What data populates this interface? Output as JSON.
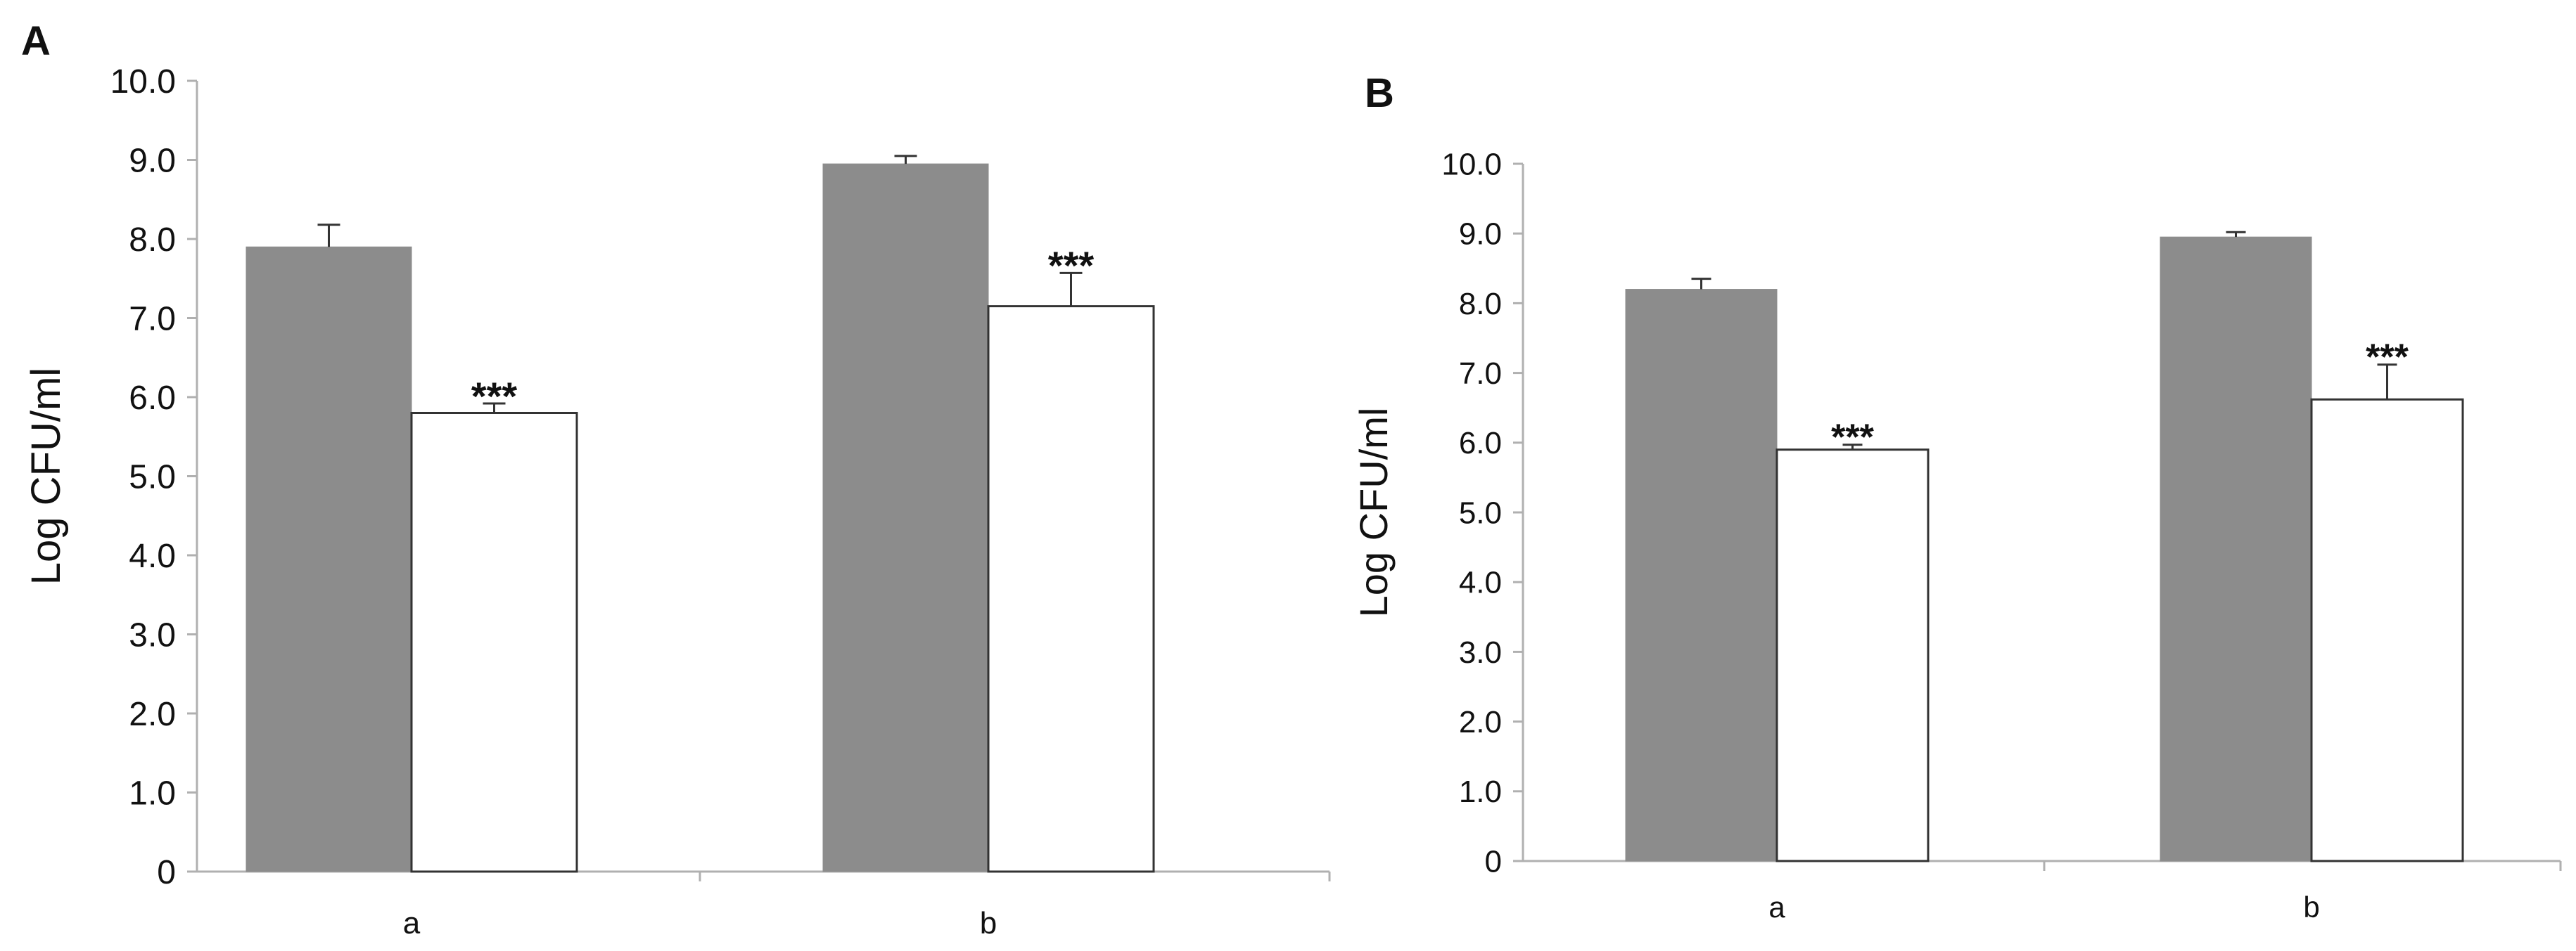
{
  "figure": {
    "colors": {
      "gray_bar": "#8c8c8c",
      "white_bar": "#ffffff",
      "axis": "#b0b0b0",
      "stroke": "#333333",
      "text": "#111111"
    }
  },
  "chart_data": [
    {
      "panel": "A",
      "type": "bar",
      "ylabel": "Log CFU/ml",
      "categories": [
        "a",
        "b"
      ],
      "ylim": [
        0,
        10
      ],
      "yticks": [
        "0",
        "1.0",
        "2.0",
        "3.0",
        "4.0",
        "5.0",
        "6.0",
        "7.0",
        "8.0",
        "9.0",
        "10.0"
      ],
      "grid": false,
      "legend": "none",
      "series": [
        {
          "fill": "gray",
          "values": [
            7.9,
            8.95
          ],
          "errors": [
            0.28,
            0.1
          ],
          "significance": [
            "",
            ""
          ]
        },
        {
          "fill": "white",
          "values": [
            5.8,
            7.15
          ],
          "errors": [
            0.12,
            0.42
          ],
          "significance": [
            "***",
            "***"
          ]
        }
      ]
    },
    {
      "panel": "B",
      "type": "bar",
      "ylabel": "Log CFU/ml",
      "categories": [
        "a",
        "b"
      ],
      "ylim": [
        0,
        10
      ],
      "yticks": [
        "0",
        "1.0",
        "2.0",
        "3.0",
        "4.0",
        "5.0",
        "6.0",
        "7.0",
        "8.0",
        "9.0",
        "10.0"
      ],
      "grid": false,
      "legend": "none",
      "series": [
        {
          "fill": "gray",
          "values": [
            8.2,
            8.95
          ],
          "errors": [
            0.15,
            0.07
          ],
          "significance": [
            "",
            ""
          ]
        },
        {
          "fill": "white",
          "values": [
            5.9,
            6.62
          ],
          "errors": [
            0.07,
            0.5
          ],
          "significance": [
            "***",
            "***"
          ]
        }
      ]
    }
  ]
}
